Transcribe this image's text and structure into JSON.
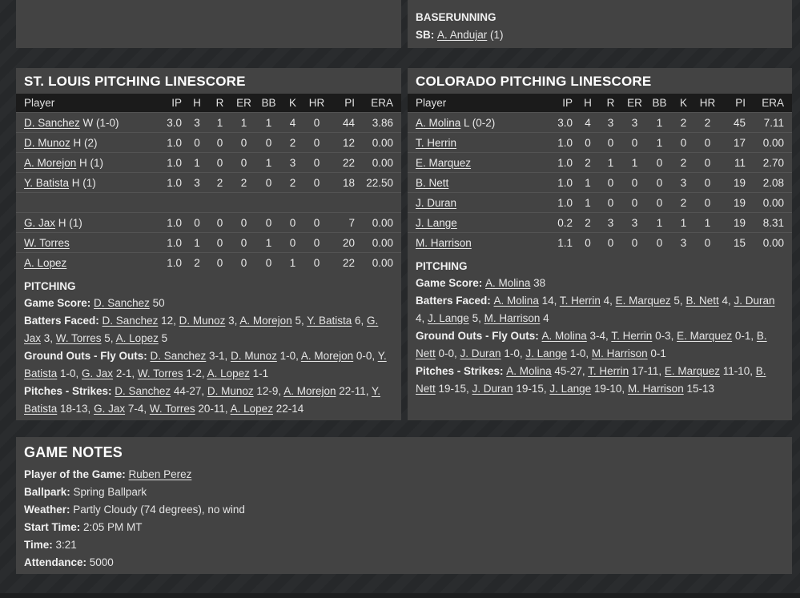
{
  "colors": {
    "page_background": "#27292b",
    "panel_background": "#434343",
    "table_header_background": "#1b1b1b",
    "text": "#e9e9e9"
  },
  "baserunning": {
    "title": "BASERUNNING",
    "sb_line": [
      [
        "b",
        "SB: "
      ],
      [
        "u",
        "A. Andujar"
      ],
      [
        "",
        " (1)"
      ]
    ]
  },
  "stl": {
    "title": "ST. LOUIS PITCHING LINESCORE",
    "columns": [
      "Player",
      "IP",
      "H",
      "R",
      "ER",
      "BB",
      "K",
      "HR",
      "PI",
      "ERA"
    ],
    "rows": [
      {
        "player": "D. Sanchez",
        "note": " W (1-0)",
        "stats": [
          "3.0",
          "3",
          "1",
          "1",
          "1",
          "4",
          "0",
          "44",
          "3.86"
        ]
      },
      {
        "player": "D. Munoz",
        "note": " H (2)",
        "stats": [
          "1.0",
          "0",
          "0",
          "0",
          "0",
          "2",
          "0",
          "12",
          "0.00"
        ]
      },
      {
        "player": "A. Morejon",
        "note": " H (1)",
        "stats": [
          "1.0",
          "1",
          "0",
          "0",
          "1",
          "3",
          "0",
          "22",
          "0.00"
        ]
      },
      {
        "player": "Y. Batista",
        "note": " H (1)",
        "stats": [
          "1.0",
          "3",
          "2",
          "2",
          "0",
          "2",
          "0",
          "18",
          "22.50"
        ]
      },
      {
        "spacer": true
      },
      {
        "player": "G. Jax",
        "note": " H (1)",
        "stats": [
          "1.0",
          "0",
          "0",
          "0",
          "0",
          "0",
          "0",
          "7",
          "0.00"
        ]
      },
      {
        "player": "W. Torres",
        "note": "",
        "stats": [
          "1.0",
          "1",
          "0",
          "0",
          "1",
          "0",
          "0",
          "20",
          "0.00"
        ]
      },
      {
        "player": "A. Lopez",
        "note": "",
        "stats": [
          "1.0",
          "2",
          "0",
          "0",
          "0",
          "1",
          "0",
          "22",
          "0.00"
        ]
      }
    ],
    "pitching_heading": "PITCHING",
    "lines": [
      [
        [
          "b",
          "Game Score: "
        ],
        [
          "u",
          "D. Sanchez"
        ],
        [
          "",
          " 50"
        ]
      ],
      [
        [
          "b",
          "Batters Faced: "
        ],
        [
          "u",
          "D. Sanchez"
        ],
        [
          "",
          " 12, "
        ],
        [
          "u",
          "D. Munoz"
        ],
        [
          "",
          " 3, "
        ],
        [
          "u",
          "A. Morejon"
        ],
        [
          "",
          " 5, "
        ],
        [
          "u",
          "Y. Batista"
        ],
        [
          "",
          " 6, "
        ],
        [
          "u",
          "G. Jax"
        ],
        [
          "",
          " 3, "
        ],
        [
          "u",
          "W. Torres"
        ],
        [
          "",
          " 5, "
        ],
        [
          "u",
          "A. Lopez"
        ],
        [
          "",
          " 5"
        ]
      ],
      [
        [
          "b",
          "Ground Outs - Fly Outs: "
        ],
        [
          "u",
          "D. Sanchez"
        ],
        [
          "",
          " 3-1, "
        ],
        [
          "u",
          "D. Munoz"
        ],
        [
          "",
          " 1-0, "
        ],
        [
          "u",
          "A. Morejon"
        ],
        [
          "",
          " 0-0, "
        ],
        [
          "u",
          "Y. Batista"
        ],
        [
          "",
          " 1-0, "
        ],
        [
          "u",
          "G. Jax"
        ],
        [
          "",
          " 2-1, "
        ],
        [
          "u",
          "W. Torres"
        ],
        [
          "",
          " 1-2, "
        ],
        [
          "u",
          "A. Lopez"
        ],
        [
          "",
          " 1-1"
        ]
      ],
      [
        [
          "b",
          "Pitches - Strikes: "
        ],
        [
          "u",
          "D. Sanchez"
        ],
        [
          "",
          " 44-27, "
        ],
        [
          "u",
          "D. Munoz"
        ],
        [
          "",
          " 12-9, "
        ],
        [
          "u",
          "A. Morejon"
        ],
        [
          "",
          " 22-11, "
        ],
        [
          "u",
          "Y. Batista"
        ],
        [
          "",
          " 18-13, "
        ],
        [
          "u",
          "G. Jax"
        ],
        [
          "",
          " 7-4, "
        ],
        [
          "u",
          "W. Torres"
        ],
        [
          "",
          " 20-11, "
        ],
        [
          "u",
          "A. Lopez"
        ],
        [
          "",
          " 22-14"
        ]
      ]
    ]
  },
  "col": {
    "title": "COLORADO PITCHING LINESCORE",
    "columns": [
      "Player",
      "IP",
      "H",
      "R",
      "ER",
      "BB",
      "K",
      "HR",
      "PI",
      "ERA"
    ],
    "rows": [
      {
        "player": "A. Molina",
        "note": " L (0-2)",
        "stats": [
          "3.0",
          "4",
          "3",
          "3",
          "1",
          "2",
          "2",
          "45",
          "7.11"
        ]
      },
      {
        "player": "T. Herrin",
        "note": "",
        "stats": [
          "1.0",
          "0",
          "0",
          "0",
          "1",
          "0",
          "0",
          "17",
          "0.00"
        ]
      },
      {
        "player": "E. Marquez",
        "note": "",
        "stats": [
          "1.0",
          "2",
          "1",
          "1",
          "0",
          "2",
          "0",
          "11",
          "2.70"
        ]
      },
      {
        "player": "B. Nett",
        "note": "",
        "stats": [
          "1.0",
          "1",
          "0",
          "0",
          "0",
          "3",
          "0",
          "19",
          "2.08"
        ]
      },
      {
        "player": "J. Duran",
        "note": "",
        "stats": [
          "1.0",
          "1",
          "0",
          "0",
          "0",
          "2",
          "0",
          "19",
          "0.00"
        ]
      },
      {
        "player": "J. Lange",
        "note": "",
        "stats": [
          "0.2",
          "2",
          "3",
          "3",
          "1",
          "1",
          "1",
          "19",
          "8.31"
        ]
      },
      {
        "player": "M. Harrison",
        "note": "",
        "stats": [
          "1.1",
          "0",
          "0",
          "0",
          "0",
          "3",
          "0",
          "15",
          "0.00"
        ]
      }
    ],
    "pitching_heading": "PITCHING",
    "lines": [
      [
        [
          "b",
          "Game Score: "
        ],
        [
          "u",
          "A. Molina"
        ],
        [
          "",
          " 38"
        ]
      ],
      [
        [
          "b",
          "Batters Faced: "
        ],
        [
          "u",
          "A. Molina"
        ],
        [
          "",
          " 14, "
        ],
        [
          "u",
          "T. Herrin"
        ],
        [
          "",
          " 4, "
        ],
        [
          "u",
          "E. Marquez"
        ],
        [
          "",
          " 5, "
        ],
        [
          "u",
          "B. Nett"
        ],
        [
          "",
          " 4, "
        ],
        [
          "u",
          "J. Duran"
        ],
        [
          "",
          " 4, "
        ],
        [
          "u",
          "J. Lange"
        ],
        [
          "",
          " 5, "
        ],
        [
          "u",
          "M. Harrison"
        ],
        [
          "",
          " 4"
        ]
      ],
      [
        [
          "b",
          "Ground Outs - Fly Outs: "
        ],
        [
          "u",
          "A. Molina"
        ],
        [
          "",
          " 3-4, "
        ],
        [
          "u",
          "T. Herrin"
        ],
        [
          "",
          " 0-3, "
        ],
        [
          "u",
          "E. Marquez"
        ],
        [
          "",
          " 0-1, "
        ],
        [
          "u",
          "B. Nett"
        ],
        [
          "",
          " 0-0, "
        ],
        [
          "u",
          "J. Duran"
        ],
        [
          "",
          " 1-0, "
        ],
        [
          "u",
          "J. Lange"
        ],
        [
          "",
          " 1-0, "
        ],
        [
          "u",
          "M. Harrison"
        ],
        [
          "",
          " 0-1"
        ]
      ],
      [
        [
          "b",
          "Pitches - Strikes: "
        ],
        [
          "u",
          "A. Molina"
        ],
        [
          "",
          " 45-27, "
        ],
        [
          "u",
          "T. Herrin"
        ],
        [
          "",
          " 17-11, "
        ],
        [
          "u",
          "E. Marquez"
        ],
        [
          "",
          " 11-10, "
        ],
        [
          "u",
          "B. Nett"
        ],
        [
          "",
          " 19-15, "
        ],
        [
          "u",
          "J. Duran"
        ],
        [
          "",
          " 19-15, "
        ],
        [
          "u",
          "J. Lange"
        ],
        [
          "",
          " 19-10, "
        ],
        [
          "u",
          "M. Harrison"
        ],
        [
          "",
          " 15-13"
        ]
      ]
    ]
  },
  "game_notes": {
    "title": "GAME NOTES",
    "lines": [
      [
        [
          "b",
          "Player of the Game: "
        ],
        [
          "u",
          "Ruben Perez"
        ]
      ],
      [
        [
          "b",
          "Ballpark: "
        ],
        [
          "",
          "Spring Ballpark"
        ]
      ],
      [
        [
          "b",
          "Weather: "
        ],
        [
          "",
          "Partly Cloudy (74 degrees), no wind"
        ]
      ],
      [
        [
          "b",
          "Start Time: "
        ],
        [
          "",
          "2:05 PM MT"
        ]
      ],
      [
        [
          "b",
          "Time: "
        ],
        [
          "",
          "3:21"
        ]
      ],
      [
        [
          "b",
          "Attendance: "
        ],
        [
          "",
          "5000"
        ]
      ]
    ]
  }
}
